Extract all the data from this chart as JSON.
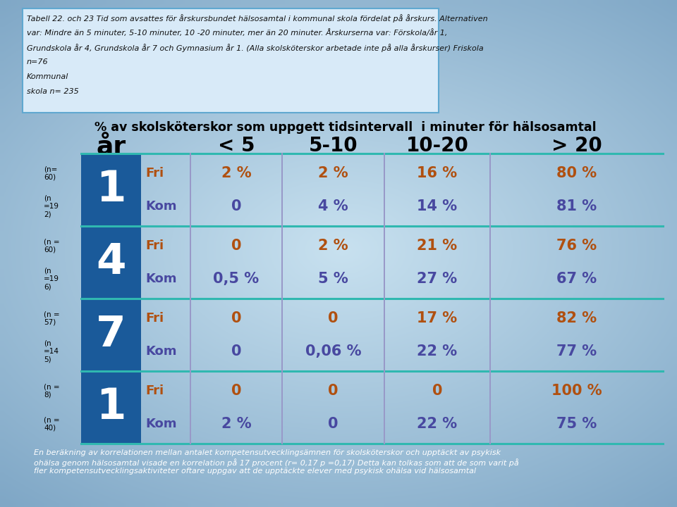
{
  "top_text_line1": "Tabell 22. och 23 Tid som avsattes för årskursbundet hälsosamtal i kommunal skola fördelat på årskurs. Alternativen",
  "top_text_line2": "var: Mindre än 5 minuter, 5-10 minuter, 10 -20 minuter, mer än 20 minuter. Årskurserna var: Förskola/år 1,",
  "top_text_line3": "Grundskola år 4, Grundskola år 7 och Gymnasium år 1. (Alla skolsköterskor arbetade inte på alla årskurser) Friskola",
  "top_text_line4": "n=76",
  "top_text_line5": "Kommunal",
  "top_text_line6": "skola n= 235",
  "main_title": "% av skolsköterskor som uppgett tidsintervall  i minuter för hälsosamtal",
  "col_headers": [
    "år",
    "< 5",
    "5-10",
    "10-20",
    "> 20"
  ],
  "bottom_lines": [
    "En beräkning av korrelationen mellan antalet kompetensutvecklingsämnen för skolsköterskor och upptäckt av psykisk",
    "ohälsa genom hälsosamtal visade en korrelation på 17 procent (r= 0,17 p =0,17) Detta kan tolkas som att de som varit på",
    "fler kompetensutvecklingsaktiviteter oftare uppgav att de upptäckte elever med psykisk ohälsa vid hälsosamtal"
  ],
  "rows": [
    {
      "year": "1",
      "n_fri": "(n=\n60)",
      "n_kom": "(n\n=19\n2)",
      "fri_vals": [
        "2 %",
        "2 %",
        "16 %",
        "80 %"
      ],
      "kom_vals": [
        "0",
        "4 %",
        "14 %",
        "81 %"
      ]
    },
    {
      "year": "4",
      "n_fri": "(n =\n60)",
      "n_kom": "(n\n=19\n6)",
      "fri_vals": [
        "0",
        "2 %",
        "21 %",
        "76 %"
      ],
      "kom_vals": [
        "0,5 %",
        "5 %",
        "27 %",
        "67 %"
      ]
    },
    {
      "year": "7",
      "n_fri": "(n =\n57)",
      "n_kom": "(n\n=14\n5)",
      "fri_vals": [
        "0",
        "0",
        "17 %",
        "82 %"
      ],
      "kom_vals": [
        "0",
        "0,06 %",
        "22 %",
        "77 %"
      ]
    },
    {
      "year": "1",
      "n_fri": "(n =\n8)",
      "n_kom": "(n =\n40)",
      "fri_vals": [
        "0",
        "0",
        "0",
        "100 %"
      ],
      "kom_vals": [
        "2 %",
        "0",
        "22 %",
        "75 %"
      ]
    }
  ],
  "year_col_bg": "#1a5a9a",
  "fri_text_color": "#b05010",
  "kom_text_color": "#4848a0",
  "horiz_line_color": "#30b8b0",
  "vert_line_color": "#9898c8",
  "top_box_bg": "#d8eaf8",
  "top_box_border": "#60a8d0"
}
